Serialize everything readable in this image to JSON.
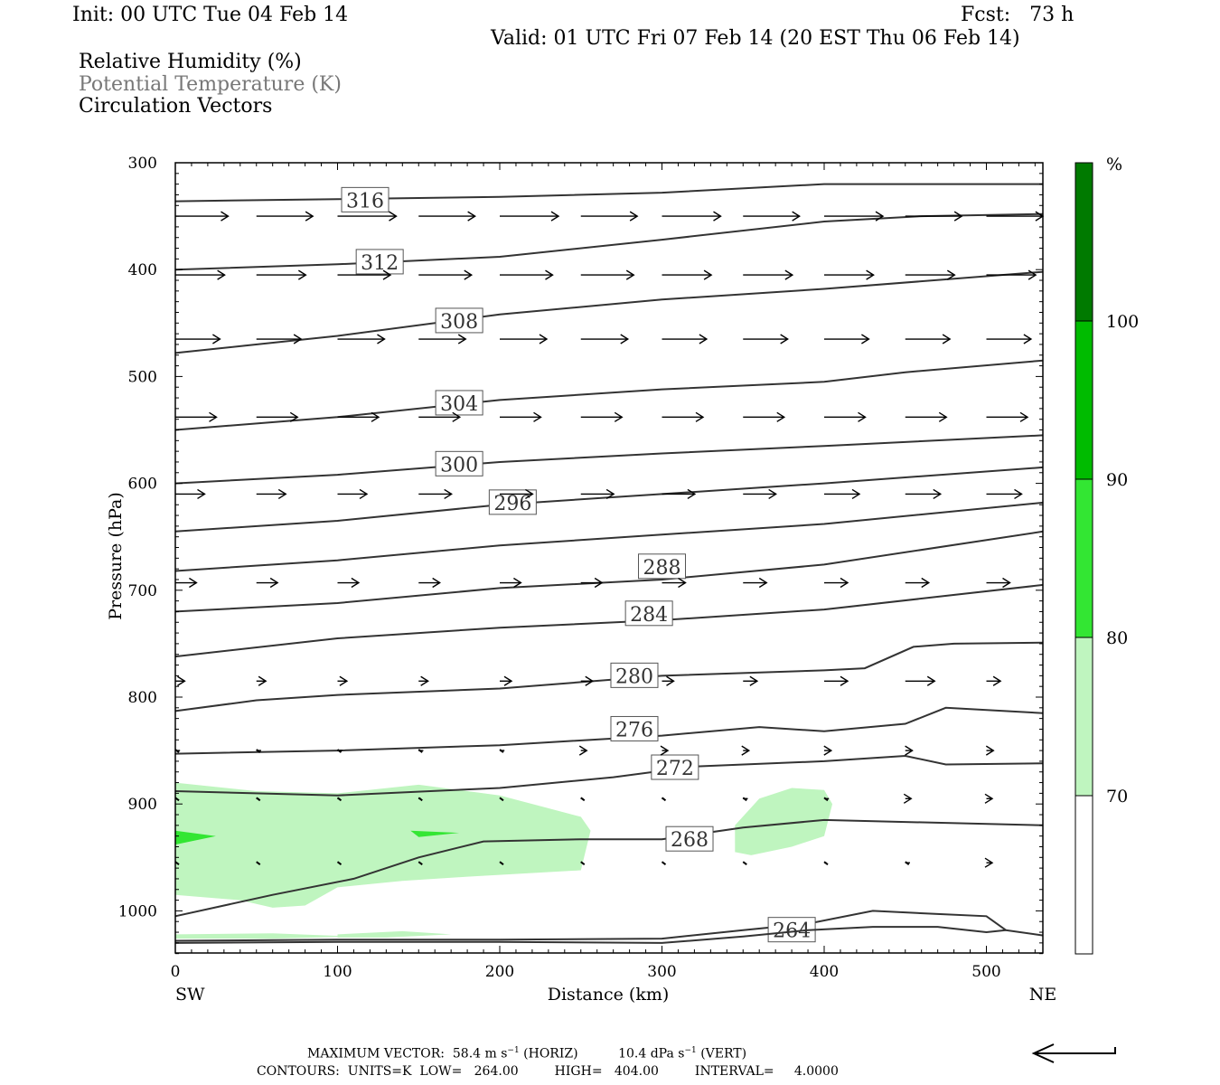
{
  "header": {
    "init": "Init: 00 UTC Tue 04 Feb 14",
    "fcst": "Fcst:   73 h",
    "valid": "Valid: 01 UTC Fri 07 Feb 14 (20 EST Thu 06 Feb 14)",
    "fields": [
      "Relative Humidity (%)",
      "Potential Temperature (K)",
      "Circulation Vectors"
    ]
  },
  "colors": {
    "theta_text": "#777777",
    "contour": "#333333",
    "rh_70_80": "#bff5bf",
    "rh_80_90": "#33e633",
    "rh_90_100": "#00bb00",
    "rh_100": "#007a00"
  },
  "chart_data": {
    "type": "cross-section",
    "xlabel": "Distance (km)",
    "ylabel": "Pressure (hPa)",
    "xlim": [
      0,
      535
    ],
    "ylim": [
      1040,
      300
    ],
    "x_ticks": [
      "0",
      "100",
      "200",
      "300",
      "400",
      "500"
    ],
    "y_ticks": [
      "300",
      "400",
      "500",
      "600",
      "700",
      "800",
      "900",
      "1000"
    ],
    "x_end_labels": {
      "left": "SW",
      "right": "NE"
    },
    "colorbar": {
      "unit": "%",
      "levels": [
        "70",
        "80",
        "90",
        "100"
      ]
    },
    "theta_contours": [
      {
        "label": "316",
        "label_x": 117,
        "label_p": 335,
        "points": [
          [
            0,
            336
          ],
          [
            100,
            334
          ],
          [
            200,
            332
          ],
          [
            300,
            328
          ],
          [
            400,
            320
          ],
          [
            535,
            320
          ]
        ]
      },
      {
        "label": "312",
        "label_x": 126,
        "label_p": 393,
        "points": [
          [
            0,
            400
          ],
          [
            100,
            395
          ],
          [
            200,
            388
          ],
          [
            300,
            372
          ],
          [
            400,
            355
          ],
          [
            460,
            350
          ],
          [
            535,
            348
          ]
        ]
      },
      {
        "label": "308",
        "label_x": 175,
        "label_p": 448,
        "points": [
          [
            0,
            478
          ],
          [
            100,
            462
          ],
          [
            200,
            442
          ],
          [
            300,
            428
          ],
          [
            400,
            418
          ],
          [
            535,
            402
          ]
        ]
      },
      {
        "label": "304",
        "label_x": 175,
        "label_p": 525,
        "points": [
          [
            0,
            550
          ],
          [
            100,
            538
          ],
          [
            200,
            522
          ],
          [
            300,
            512
          ],
          [
            400,
            505
          ],
          [
            450,
            496
          ],
          [
            535,
            485
          ]
        ]
      },
      {
        "label": "300",
        "label_x": 175,
        "label_p": 582,
        "points": [
          [
            0,
            600
          ],
          [
            100,
            592
          ],
          [
            200,
            580
          ],
          [
            300,
            572
          ],
          [
            400,
            565
          ],
          [
            535,
            555
          ]
        ]
      },
      {
        "label": "296",
        "label_x": 208,
        "label_p": 618,
        "points": [
          [
            0,
            645
          ],
          [
            100,
            635
          ],
          [
            200,
            620
          ],
          [
            300,
            610
          ],
          [
            400,
            600
          ],
          [
            535,
            585
          ]
        ]
      },
      {
        "label": "",
        "label_x": 0,
        "label_p": 0,
        "points": [
          [
            0,
            682
          ],
          [
            100,
            672
          ],
          [
            200,
            658
          ],
          [
            300,
            648
          ],
          [
            400,
            638
          ],
          [
            535,
            618
          ]
        ]
      },
      {
        "label": "288",
        "label_x": 300,
        "label_p": 678,
        "points": [
          [
            0,
            720
          ],
          [
            100,
            712
          ],
          [
            200,
            698
          ],
          [
            300,
            690
          ],
          [
            400,
            676
          ],
          [
            535,
            645
          ]
        ]
      },
      {
        "label": "284",
        "label_x": 292,
        "label_p": 722,
        "points": [
          [
            0,
            762
          ],
          [
            100,
            745
          ],
          [
            200,
            735
          ],
          [
            300,
            728
          ],
          [
            400,
            718
          ],
          [
            535,
            695
          ]
        ]
      },
      {
        "label": "280",
        "label_x": 283,
        "label_p": 780,
        "points": [
          [
            0,
            813
          ],
          [
            50,
            803
          ],
          [
            100,
            798
          ],
          [
            200,
            792
          ],
          [
            300,
            780
          ],
          [
            400,
            775
          ],
          [
            425,
            773
          ],
          [
            455,
            753
          ],
          [
            480,
            750
          ],
          [
            535,
            749
          ]
        ]
      },
      {
        "label": "276",
        "label_x": 283,
        "label_p": 830,
        "points": [
          [
            0,
            853
          ],
          [
            100,
            850
          ],
          [
            200,
            845
          ],
          [
            300,
            836
          ],
          [
            360,
            828
          ],
          [
            400,
            832
          ],
          [
            450,
            825
          ],
          [
            475,
            810
          ],
          [
            535,
            815
          ]
        ]
      },
      {
        "label": "272",
        "label_x": 308,
        "label_p": 866,
        "points": [
          [
            0,
            888
          ],
          [
            100,
            892
          ],
          [
            200,
            885
          ],
          [
            270,
            875
          ],
          [
            320,
            865
          ],
          [
            400,
            860
          ],
          [
            450,
            855
          ],
          [
            475,
            863
          ],
          [
            535,
            862
          ]
        ]
      },
      {
        "label": "268",
        "label_x": 317,
        "label_p": 933,
        "points": [
          [
            0,
            1005
          ],
          [
            60,
            985
          ],
          [
            110,
            970
          ],
          [
            150,
            950
          ],
          [
            190,
            935
          ],
          [
            250,
            933
          ],
          [
            300,
            933
          ],
          [
            350,
            922
          ],
          [
            400,
            915
          ],
          [
            535,
            920
          ]
        ]
      },
      {
        "label": "264",
        "label_x": 380,
        "label_p": 1018,
        "points": [
          [
            0,
            1028
          ],
          [
            100,
            1027
          ],
          [
            200,
            1027
          ],
          [
            300,
            1026
          ],
          [
            350,
            1018
          ],
          [
            390,
            1012
          ],
          [
            430,
            1000
          ],
          [
            470,
            1003
          ],
          [
            500,
            1005
          ],
          [
            512,
            1018
          ]
        ]
      },
      {
        "label": "",
        "label_x": 0,
        "label_p": 0,
        "points": [
          [
            0,
            1030
          ],
          [
            100,
            1029
          ],
          [
            200,
            1029
          ],
          [
            300,
            1030
          ],
          [
            350,
            1024
          ],
          [
            390,
            1018
          ],
          [
            430,
            1015
          ],
          [
            470,
            1015
          ],
          [
            500,
            1020
          ],
          [
            512,
            1018
          ],
          [
            535,
            1023
          ]
        ]
      }
    ],
    "rh_regions": [
      {
        "level": "70-80",
        "points": [
          [
            0,
            880
          ],
          [
            50,
            888
          ],
          [
            100,
            890
          ],
          [
            150,
            882
          ],
          [
            200,
            892
          ],
          [
            250,
            912
          ],
          [
            256,
            925
          ],
          [
            250,
            962
          ],
          [
            180,
            968
          ],
          [
            140,
            972
          ],
          [
            100,
            978
          ],
          [
            80,
            995
          ],
          [
            60,
            997
          ],
          [
            40,
            990
          ],
          [
            0,
            985
          ]
        ]
      },
      {
        "level": "70-80",
        "points": [
          [
            345,
            920
          ],
          [
            360,
            895
          ],
          [
            380,
            885
          ],
          [
            400,
            887
          ],
          [
            405,
            900
          ],
          [
            400,
            930
          ],
          [
            380,
            940
          ],
          [
            355,
            948
          ],
          [
            345,
            945
          ]
        ]
      },
      {
        "level": "70-80",
        "points": [
          [
            0,
            1022
          ],
          [
            60,
            1021
          ],
          [
            110,
            1024
          ],
          [
            60,
            1026
          ],
          [
            0,
            1026
          ]
        ]
      },
      {
        "level": "70-80",
        "points": [
          [
            100,
            1022
          ],
          [
            140,
            1019
          ],
          [
            170,
            1022
          ],
          [
            130,
            1025
          ],
          [
            100,
            1025
          ]
        ]
      },
      {
        "level": "80-90",
        "points": [
          [
            0,
            925
          ],
          [
            25,
            930
          ],
          [
            0,
            938
          ]
        ]
      },
      {
        "level": "80-90",
        "points": [
          [
            145,
            925
          ],
          [
            175,
            927
          ],
          [
            150,
            931
          ]
        ]
      }
    ],
    "vectors": [
      {
        "p": 350,
        "x": [
          0,
          50,
          100,
          150,
          200,
          250,
          300,
          350,
          400,
          450,
          500
        ],
        "u": [
          45,
          48,
          50,
          48,
          50,
          48,
          50,
          48,
          50,
          48,
          48
        ],
        "w": [
          0,
          0,
          0,
          0,
          0,
          0,
          0,
          0,
          0,
          0,
          0
        ]
      },
      {
        "p": 405,
        "x": [
          0,
          50,
          100,
          150,
          200,
          250,
          300,
          350,
          400,
          450,
          500
        ],
        "u": [
          42,
          42,
          45,
          45,
          45,
          45,
          42,
          42,
          42,
          42,
          42
        ],
        "w": [
          0,
          0,
          0,
          0,
          0,
          0,
          0,
          0,
          0,
          0,
          0
        ]
      },
      {
        "p": 465,
        "x": [
          0,
          50,
          100,
          150,
          200,
          250,
          300,
          350,
          400,
          450,
          500
        ],
        "u": [
          38,
          38,
          40,
          40,
          40,
          40,
          38,
          38,
          38,
          38,
          38
        ],
        "w": [
          0,
          0,
          0,
          0,
          0,
          0,
          0,
          0,
          0,
          0,
          0
        ]
      },
      {
        "p": 538,
        "x": [
          0,
          50,
          100,
          150,
          200,
          250,
          300,
          350,
          400,
          450,
          500
        ],
        "u": [
          35,
          35,
          35,
          35,
          35,
          35,
          35,
          35,
          35,
          35,
          35
        ],
        "w": [
          0,
          0,
          0,
          0,
          0,
          0,
          0,
          0,
          0,
          0,
          0
        ]
      },
      {
        "p": 610,
        "x": [
          0,
          50,
          100,
          150,
          200,
          250,
          300,
          350,
          400,
          450,
          500
        ],
        "u": [
          25,
          25,
          25,
          28,
          28,
          28,
          28,
          28,
          30,
          30,
          30
        ],
        "w": [
          0,
          0,
          0,
          0,
          0,
          0,
          0,
          0,
          0,
          0,
          0
        ]
      },
      {
        "p": 693,
        "x": [
          0,
          50,
          100,
          150,
          200,
          250,
          300,
          350,
          400,
          450,
          500
        ],
        "u": [
          18,
          18,
          18,
          18,
          18,
          18,
          20,
          20,
          20,
          20,
          20
        ],
        "w": [
          0,
          0,
          0,
          0,
          0,
          0,
          0,
          0,
          0,
          0,
          0
        ]
      },
      {
        "p": 785,
        "x": [
          0,
          50,
          100,
          150,
          200,
          250,
          300,
          350,
          400,
          450,
          500
        ],
        "u": [
          8,
          8,
          8,
          8,
          10,
          10,
          10,
          12,
          20,
          25,
          12
        ],
        "w": [
          0,
          0,
          0,
          0,
          0,
          0,
          0,
          0,
          0,
          0,
          0
        ]
      },
      {
        "p": 850,
        "x": [
          0,
          50,
          100,
          150,
          200,
          250,
          300,
          350,
          400,
          450,
          500
        ],
        "u": [
          4,
          4,
          4,
          4,
          4,
          5,
          5,
          5,
          6,
          6,
          6
        ],
        "w": [
          0,
          0,
          0,
          0,
          0,
          0,
          0,
          0,
          0,
          0,
          0
        ]
      },
      {
        "p": 895,
        "x": [
          0,
          50,
          100,
          150,
          200,
          250,
          300,
          350,
          400,
          450,
          500
        ],
        "u": [
          0,
          2,
          2,
          2,
          0,
          2,
          2,
          4,
          4,
          5,
          5
        ],
        "w": [
          0,
          0,
          0,
          0,
          0,
          0,
          0,
          0,
          0,
          0,
          0
        ]
      },
      {
        "p": 955,
        "x": [
          0,
          50,
          100,
          150,
          200,
          250,
          300,
          350,
          400,
          450,
          500
        ],
        "u": [
          0,
          0,
          0,
          0,
          0,
          0,
          0,
          0,
          2,
          4,
          5
        ],
        "w": [
          0,
          0,
          0,
          0,
          0,
          0,
          0,
          0,
          0,
          0,
          0
        ]
      }
    ],
    "footer": {
      "max_vector": "MAXIMUM VECTOR:  58.4 m s",
      "horiz": "(HORIZ)",
      "vert": "10.4 dPa s",
      "vert_unit": "(VERT)",
      "contours": "CONTOURS:  UNITS=K  LOW=   264.00         HIGH=   404.00         INTERVAL=     4.0000"
    }
  }
}
